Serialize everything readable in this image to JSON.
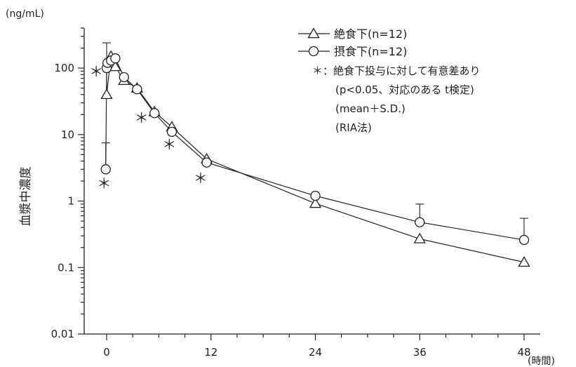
{
  "chart_data": {
    "type": "line",
    "yscale": "log",
    "title": "",
    "ylabel": "血漿中濃度",
    "yunit": "(ng/mL)",
    "xunit": "(時間)",
    "xlim": [
      -1.5,
      49
    ],
    "ylim": [
      0.01,
      400
    ],
    "xticks": [
      0,
      12,
      24,
      36,
      48
    ],
    "xminor": [
      3,
      6,
      9,
      15,
      18,
      21,
      27,
      30,
      33,
      39,
      42,
      45
    ],
    "yticks": [
      {
        "value": 100,
        "label": "100"
      },
      {
        "value": 10,
        "label": "10"
      },
      {
        "value": 1,
        "label": "1"
      },
      {
        "value": 0.1,
        "label": "0.1"
      },
      {
        "value": 0.01,
        "label": "0.01"
      }
    ],
    "series": [
      {
        "name": "絶食下(n=12)",
        "marker": "triangle",
        "x": [
          0,
          0.5,
          1,
          2,
          3.5,
          5.5,
          7.5,
          11.5,
          24,
          36,
          48
        ],
        "y": [
          40,
          150,
          105,
          65,
          50,
          22,
          13,
          4.3,
          0.92,
          0.27,
          0.12
        ]
      },
      {
        "name": "摂食下(n=12)",
        "marker": "circle",
        "x": [
          -0.1,
          0,
          0.1,
          0.5,
          1,
          2,
          3.5,
          5.5,
          7.5,
          11.5,
          24,
          36,
          48
        ],
        "y": [
          3,
          100,
          120,
          130,
          140,
          73,
          48,
          21,
          11,
          3.8,
          1.2,
          0.48,
          0.26
        ]
      }
    ],
    "error_bars": [
      {
        "x": 0,
        "y": 40,
        "upper": 240
      },
      {
        "x": -0.1,
        "y": 3,
        "upper": 7.5
      },
      {
        "x": 36,
        "y": 0.48,
        "upper": 0.9
      },
      {
        "x": 48,
        "y": 0.26,
        "upper": 0.55
      }
    ],
    "significance": [
      {
        "symbol": "＊",
        "x": -1.2,
        "y": 75
      },
      {
        "symbol": "＊",
        "x": -0.3,
        "y": 1.55
      },
      {
        "symbol": "＊",
        "x": 4,
        "y": 15
      },
      {
        "symbol": "＊",
        "x": 7.2,
        "y": 6
      },
      {
        "symbol": "＊",
        "x": 10.8,
        "y": 1.85
      }
    ],
    "notes": [
      "＊：絶食下投与に対して有意差あり",
      "(p<0.05、対応のある t検定)",
      "(mean＋S.D.)",
      "(RIA法)"
    ]
  }
}
